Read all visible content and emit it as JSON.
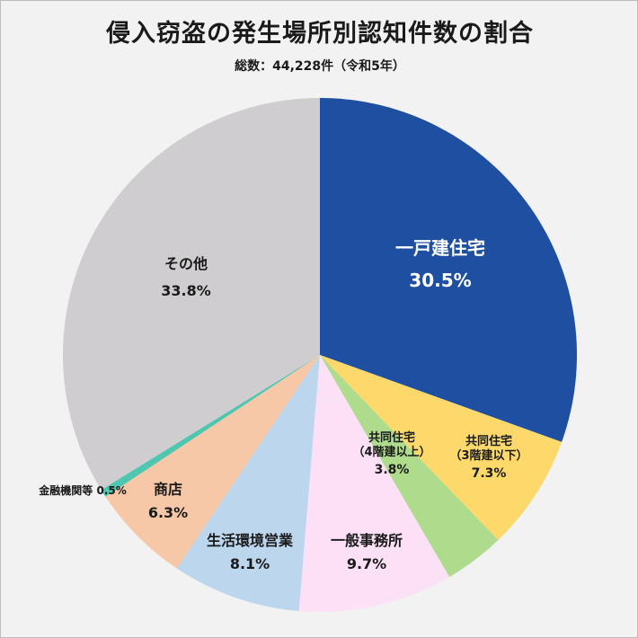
{
  "header": {
    "title": "侵入窃盗の発生場所別認知件数の割合",
    "subtitle": "総数：44,228件（令和5年）"
  },
  "chart_data": {
    "type": "pie",
    "title": "侵入窃盗の発生場所別認知件数の割合",
    "subtitle": "総数：44,228件（令和5年）",
    "start": "12 o'clock",
    "direction": "clockwise",
    "slices": [
      {
        "lines": [
          "一戸建住宅"
        ],
        "value": 30.5,
        "value_label": "30.5%",
        "color": "#1f4fa0",
        "text_color": "#ffffff"
      },
      {
        "lines": [
          "共同住宅",
          "（3階建以下）"
        ],
        "value": 7.3,
        "value_label": "7.3%",
        "color": "#fcd96a",
        "text_color": "#1a1a1a"
      },
      {
        "lines": [
          "共同住宅",
          "（4階建以上）"
        ],
        "value": 3.8,
        "value_label": "3.8%",
        "color": "#aedb8c",
        "text_color": "#1a1a1a"
      },
      {
        "lines": [
          "一般事務所"
        ],
        "value": 9.7,
        "value_label": "9.7%",
        "color": "#fce0f5",
        "text_color": "#1a1a1a"
      },
      {
        "lines": [
          "生活環境営業"
        ],
        "value": 8.1,
        "value_label": "8.1%",
        "color": "#bcd6ee",
        "text_color": "#1a1a1a"
      },
      {
        "lines": [
          "商店"
        ],
        "value": 6.3,
        "value_label": "6.3%",
        "color": "#f6c8a8",
        "text_color": "#1a1a1a"
      },
      {
        "lines": [
          "金融機関等"
        ],
        "value": 0.5,
        "value_label": "0.5%",
        "color": "#4fc6b0",
        "text_color": "#1a1a1a"
      },
      {
        "lines": [
          "その他"
        ],
        "value": 33.8,
        "value_label": "33.8%",
        "color": "#cfcdcf",
        "text_color": "#1a1a1a"
      }
    ]
  }
}
